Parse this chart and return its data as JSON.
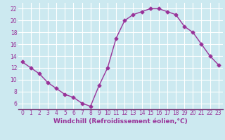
{
  "x": [
    0,
    1,
    2,
    3,
    4,
    5,
    6,
    7,
    8,
    9,
    10,
    11,
    12,
    13,
    14,
    15,
    16,
    17,
    18,
    19,
    20,
    21,
    22,
    23
  ],
  "y": [
    13,
    12,
    11,
    9.5,
    8.5,
    7.5,
    7,
    6,
    5.5,
    9,
    12,
    17,
    20,
    21,
    21.5,
    22,
    22,
    21.5,
    21,
    19,
    18,
    16,
    14,
    12.5
  ],
  "line_color": "#993399",
  "marker": "D",
  "markersize": 2.5,
  "linewidth": 1,
  "xlabel": "Windchill (Refroidissement éolien,°C)",
  "xlabel_fontsize": 6.5,
  "yticks": [
    6,
    8,
    10,
    12,
    14,
    16,
    18,
    20,
    22
  ],
  "xticks": [
    0,
    1,
    2,
    3,
    4,
    5,
    6,
    7,
    8,
    9,
    10,
    11,
    12,
    13,
    14,
    15,
    16,
    17,
    18,
    19,
    20,
    21,
    22,
    23
  ],
  "ylim": [
    5.0,
    23.0
  ],
  "xlim": [
    -0.5,
    23.5
  ],
  "background_color": "#cce9f0",
  "grid_color": "#ffffff",
  "tick_color": "#993399",
  "tick_fontsize": 5.5,
  "bottom_bar_color": "#7b3f7b",
  "spine_bottom_color": "#7b3f7b"
}
